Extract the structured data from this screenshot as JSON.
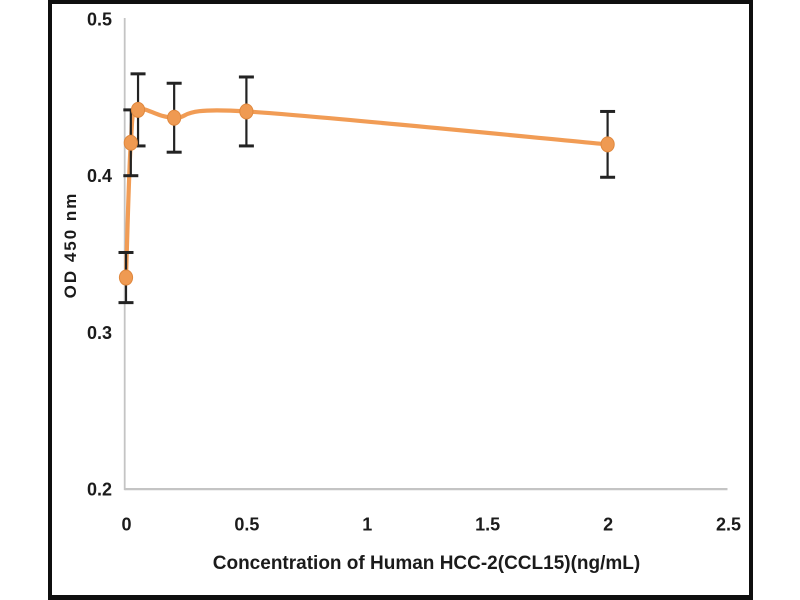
{
  "chart_data": {
    "type": "line",
    "title": "",
    "xlabel": "Concentration of Human HCC-2(CCL15)(ng/mL)",
    "ylabel": "OD 450 nm",
    "xlim": [
      0,
      2.5
    ],
    "ylim": [
      0.2,
      0.5
    ],
    "x_ticks": [
      "0",
      "0.5",
      "1",
      "1.5",
      "2",
      "2.5"
    ],
    "y_ticks": [
      "0.5",
      "0.4",
      "0.3",
      "0.2"
    ],
    "grid": false,
    "legend": "none",
    "line_style": "smooth",
    "series": [
      {
        "x": [
          0,
          0.02,
          0.05,
          0.2,
          0.5,
          2
        ],
        "y": [
          0.335,
          0.421,
          0.442,
          0.437,
          0.441,
          0.42
        ],
        "y_err": [
          0.016,
          0.021,
          0.023,
          0.022,
          0.022,
          0.021
        ],
        "marker": "circle"
      }
    ]
  },
  "style": {
    "line_color": "#F19C55",
    "marker_fill": "#EF9A52",
    "marker_edge": "#E0883E",
    "error_bar_color": "#232323",
    "axis_line_color": "#c4c4c4",
    "text_color": "#1b1b1b",
    "frame_color": "#0f0f0f",
    "background": "#ffffff"
  }
}
